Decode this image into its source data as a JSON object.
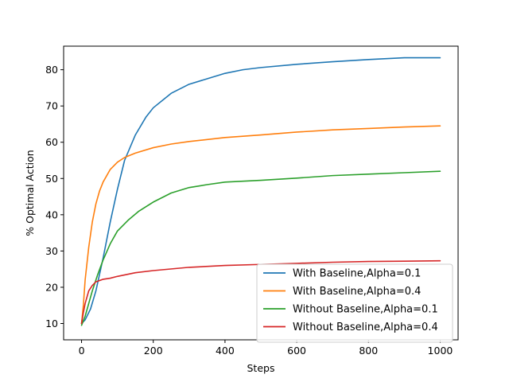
{
  "chart_data": {
    "type": "line",
    "title": "",
    "xlabel": "Steps",
    "ylabel": "% Optimal Action",
    "xlim": [
      -50,
      1050
    ],
    "ylim": [
      5.5,
      86.5
    ],
    "x_ticks": [
      0,
      200,
      400,
      600,
      800,
      1000
    ],
    "y_ticks": [
      10,
      20,
      30,
      40,
      50,
      60,
      70,
      80
    ],
    "grid": false,
    "legend_position": "lower-right",
    "series": [
      {
        "name": "With Baseline,Alpha=0.1",
        "color": "#1f77b4",
        "x": [
          0,
          10,
          25,
          40,
          60,
          80,
          100,
          120,
          150,
          180,
          200,
          250,
          300,
          350,
          400,
          450,
          500,
          600,
          700,
          800,
          900,
          1000
        ],
        "y": [
          10,
          11,
          14,
          19,
          28,
          38,
          47,
          55,
          62,
          67,
          69.5,
          73.5,
          76,
          77.5,
          79,
          80,
          80.6,
          81.5,
          82.2,
          82.8,
          83.3,
          83.3
        ]
      },
      {
        "name": "With Baseline,Alpha=0.4",
        "color": "#ff7f0e",
        "x": [
          0,
          5,
          10,
          20,
          30,
          40,
          50,
          60,
          80,
          100,
          120,
          150,
          200,
          250,
          300,
          400,
          500,
          600,
          700,
          800,
          900,
          1000
        ],
        "y": [
          10,
          15,
          22,
          31,
          38,
          43,
          46.5,
          49,
          52.5,
          54.5,
          55.8,
          57,
          58.5,
          59.5,
          60.2,
          61.3,
          62,
          62.8,
          63.4,
          63.8,
          64.2,
          64.5
        ]
      },
      {
        "name": "Without Baseline,Alpha=0.1",
        "color": "#2ca02c",
        "x": [
          0,
          10,
          20,
          30,
          45,
          60,
          80,
          100,
          130,
          160,
          200,
          250,
          300,
          350,
          400,
          500,
          600,
          700,
          800,
          900,
          1000
        ],
        "y": [
          9.5,
          12,
          15.5,
          19,
          23.5,
          27.5,
          32,
          35.5,
          38.5,
          41,
          43.5,
          46,
          47.5,
          48.3,
          49,
          49.5,
          50.1,
          50.8,
          51.2,
          51.6,
          52
        ]
      },
      {
        "name": "Without Baseline,Alpha=0.4",
        "color": "#d62728",
        "x": [
          0,
          5,
          10,
          20,
          30,
          40,
          60,
          80,
          100,
          150,
          200,
          300,
          400,
          500,
          600,
          700,
          800,
          900,
          1000
        ],
        "y": [
          10,
          13,
          15.5,
          19,
          20.5,
          21.5,
          22.2,
          22.5,
          23,
          24,
          24.6,
          25.5,
          26,
          26.3,
          26.6,
          26.9,
          27.1,
          27.2,
          27.3
        ]
      }
    ]
  }
}
